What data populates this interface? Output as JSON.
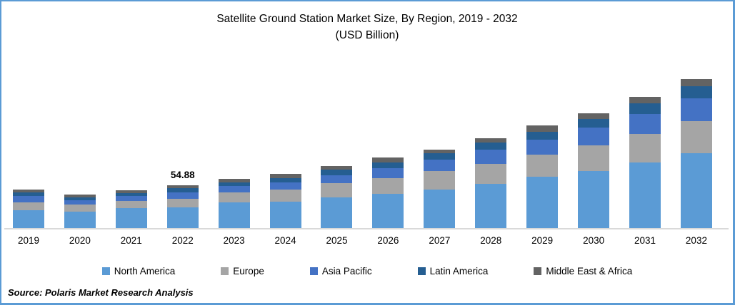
{
  "title": {
    "line1": "Satellite Ground Station Market Size, By Region, 2019 - 2032",
    "line2": "(USD Billion)"
  },
  "source": "Source: Polaris Market Research Analysis",
  "annotation": {
    "category": "2022",
    "label": "54.88"
  },
  "colors": {
    "frame_border": "#5B9BD5",
    "axis_line": "#D9D9D9",
    "background": "#FFFFFF",
    "text": "#000000"
  },
  "chart_data": {
    "type": "bar",
    "stacked": true,
    "title": "Satellite Ground Station Market Size, By Region, 2019 - 2032",
    "subtitle": "(USD Billion)",
    "units": "USD Billion",
    "xlabel": "",
    "ylabel": "",
    "grid": false,
    "legend_position": "bottom",
    "y_axis_visible": false,
    "ylim": [
      0,
      210
    ],
    "categories": [
      "2019",
      "2020",
      "2021",
      "2022",
      "2023",
      "2024",
      "2025",
      "2026",
      "2027",
      "2028",
      "2029",
      "2030",
      "2031",
      "2032"
    ],
    "series": [
      {
        "name": "North America",
        "color": "#5B9BD5",
        "values": [
          23.1,
          20.7,
          25.2,
          26.5,
          32.6,
          33.5,
          39.6,
          44.2,
          49.4,
          57.0,
          66.1,
          73.2,
          84.4,
          96.0
        ]
      },
      {
        "name": "Europe",
        "color": "#A5A5A5",
        "values": [
          10.1,
          9.5,
          9.8,
          11.0,
          13.2,
          15.9,
          17.7,
          19.9,
          23.8,
          25.0,
          28.4,
          32.9,
          36.6,
          41.2
        ]
      },
      {
        "name": "Asia Pacific",
        "color": "#4472C4",
        "values": [
          7.6,
          5.5,
          6.1,
          8.2,
          8.2,
          9.1,
          10.4,
          12.8,
          14.6,
          18.3,
          18.9,
          22.9,
          25.3,
          29.5
        ]
      },
      {
        "name": "Latin America",
        "color": "#255E91",
        "values": [
          5.2,
          3.9,
          3.9,
          5.2,
          4.9,
          6.0,
          7.0,
          7.6,
          8.2,
          9.1,
          10.1,
          10.6,
          13.7,
          15.3
        ]
      },
      {
        "name": "Middle East & Africa",
        "color": "#636363",
        "values": [
          3.9,
          3.7,
          3.7,
          3.98,
          4.2,
          5.0,
          4.6,
          6.1,
          5.1,
          6.0,
          8.2,
          7.3,
          8.2,
          9.1
        ]
      }
    ],
    "totals": [
      49.9,
      43.3,
      48.7,
      54.88,
      63.1,
      69.5,
      79.3,
      90.6,
      101.1,
      115.4,
      131.7,
      146.9,
      168.2,
      191.1
    ],
    "data_labels": [
      {
        "category": "2022",
        "text": "54.88"
      }
    ]
  }
}
